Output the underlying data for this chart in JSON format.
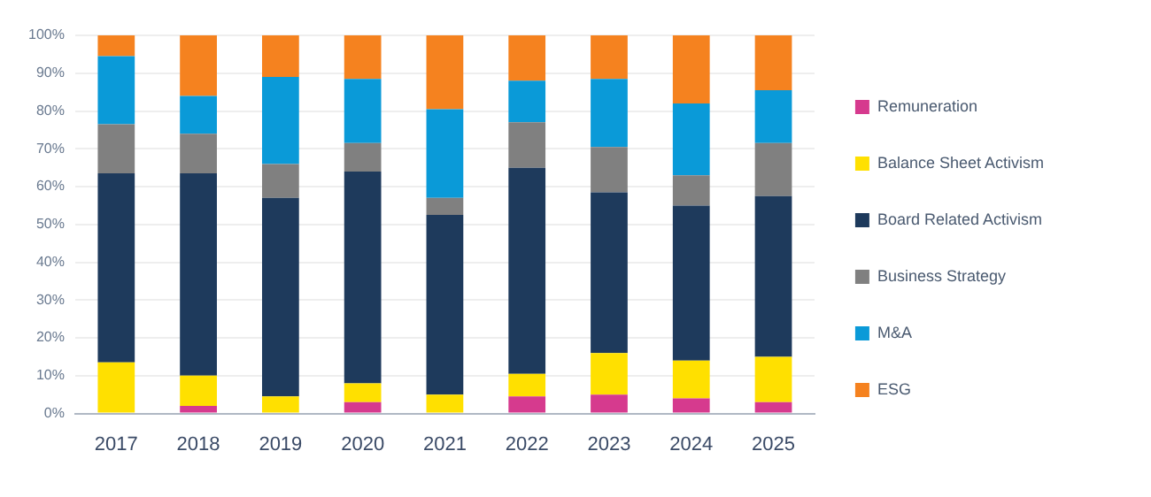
{
  "chart_data": {
    "type": "bar",
    "stacked": true,
    "categories": [
      "2017",
      "2018",
      "2019",
      "2020",
      "2021",
      "2022",
      "2023",
      "2024",
      "2025"
    ],
    "series": [
      {
        "name": "Remuneration",
        "color": "#d63a8e",
        "values": [
          0,
          2,
          0,
          3,
          0,
          4.5,
          5,
          4,
          3
        ]
      },
      {
        "name": "Balance Sheet Activism",
        "color": "#ffe000",
        "values": [
          13.5,
          8,
          4.5,
          5,
          5,
          6,
          11,
          10,
          12
        ]
      },
      {
        "name": "Board Related Activism",
        "color": "#1e3a5c",
        "values": [
          50,
          53.5,
          52.5,
          56,
          47.5,
          54.5,
          42.5,
          41,
          42.5
        ]
      },
      {
        "name": "Business Strategy",
        "color": "#808080",
        "values": [
          13,
          10.5,
          9,
          7.5,
          4.5,
          12,
          12,
          8,
          14
        ]
      },
      {
        "name": "M&A",
        "color": "#0a9ad8",
        "values": [
          18,
          10,
          23,
          17,
          23.5,
          11,
          18,
          19,
          14
        ]
      },
      {
        "name": "ESG",
        "color": "#f5821f",
        "values": [
          5.5,
          16,
          11,
          11.5,
          19.5,
          12,
          11.5,
          18,
          14.5
        ]
      }
    ],
    "ylim": [
      0,
      100
    ],
    "yticks": [
      {
        "value": 0,
        "label": "0%"
      },
      {
        "value": 10,
        "label": "10%"
      },
      {
        "value": 20,
        "label": "20%"
      },
      {
        "value": 30,
        "label": "30%"
      },
      {
        "value": 40,
        "label": "40%"
      },
      {
        "value": 50,
        "label": "50%"
      },
      {
        "value": 60,
        "label": "60%"
      },
      {
        "value": 70,
        "label": "70%"
      },
      {
        "value": 80,
        "label": "80%"
      },
      {
        "value": 90,
        "label": "90%"
      },
      {
        "value": 100,
        "label": "100%"
      }
    ],
    "grid": "y",
    "legend": "right"
  }
}
